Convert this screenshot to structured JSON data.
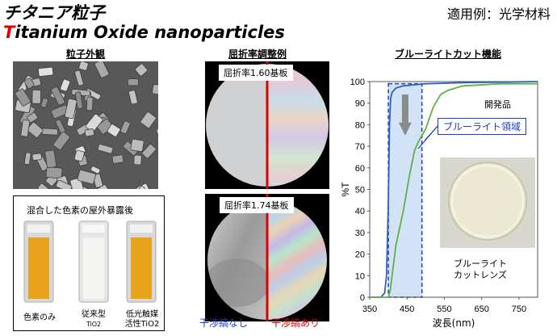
{
  "title": {
    "jp": "チタニア粒子",
    "en_first": "T",
    "en_rest": "itanium Oxide nanoparticles"
  },
  "usage": "適用例：光学材料",
  "sections": {
    "particles": "粒子外観",
    "refractive": "屈折率調整例",
    "bluelight": "ブルーライトカット機能"
  },
  "exposure": {
    "caption": "混合した色素の屋外暴露後",
    "cuvettes": [
      {
        "line1": "色素のみ",
        "line2": "",
        "color": "#e8a21c"
      },
      {
        "line1": "従来型",
        "line2": "TiO2",
        "color": "#f4f4f0"
      },
      {
        "line1": "低光触媒",
        "line2": "活性TiO2",
        "color": "#e8a21c"
      }
    ]
  },
  "lenses": {
    "label_160": "屈折率1.60基板",
    "label_174": "屈折率1.74基板",
    "no_fringe": "干渉縞なし",
    "fringe": "干渉縞あり"
  },
  "chart_data": {
    "type": "line",
    "xlabel": "波長(nm)",
    "ylabel": "%T",
    "xlim": [
      350,
      800
    ],
    "ylim": [
      0,
      100
    ],
    "xticks": [
      350,
      450,
      550,
      650,
      750
    ],
    "yticks": [
      0,
      10,
      20,
      30,
      40,
      50,
      60,
      70,
      80,
      90,
      100
    ],
    "highlight_region": [
      400,
      490
    ],
    "series": [
      {
        "name": "",
        "color": "#2f5fc4",
        "x": [
          350,
          380,
          390,
          395,
          400,
          403,
          406,
          410,
          420,
          440,
          500,
          600,
          800
        ],
        "y": [
          0,
          0,
          2,
          10,
          45,
          80,
          92,
          95,
          97,
          98,
          99,
          99.5,
          100
        ]
      },
      {
        "name": "開発品",
        "color": "#5fb045",
        "x": [
          350,
          400,
          405,
          410,
          420,
          440,
          455,
          470,
          480,
          490,
          500,
          520,
          540,
          560,
          600,
          700,
          800
        ],
        "y": [
          0,
          0,
          3,
          10,
          24,
          40,
          55,
          68,
          72,
          75,
          78,
          88,
          94,
          96,
          98,
          99,
          99
        ]
      }
    ]
  },
  "annotations": {
    "callout": "ブルーライト領域",
    "dev_label": "開発品",
    "lens_caption_1": "ブルーライト",
    "lens_caption_2": "カットレンズ"
  }
}
